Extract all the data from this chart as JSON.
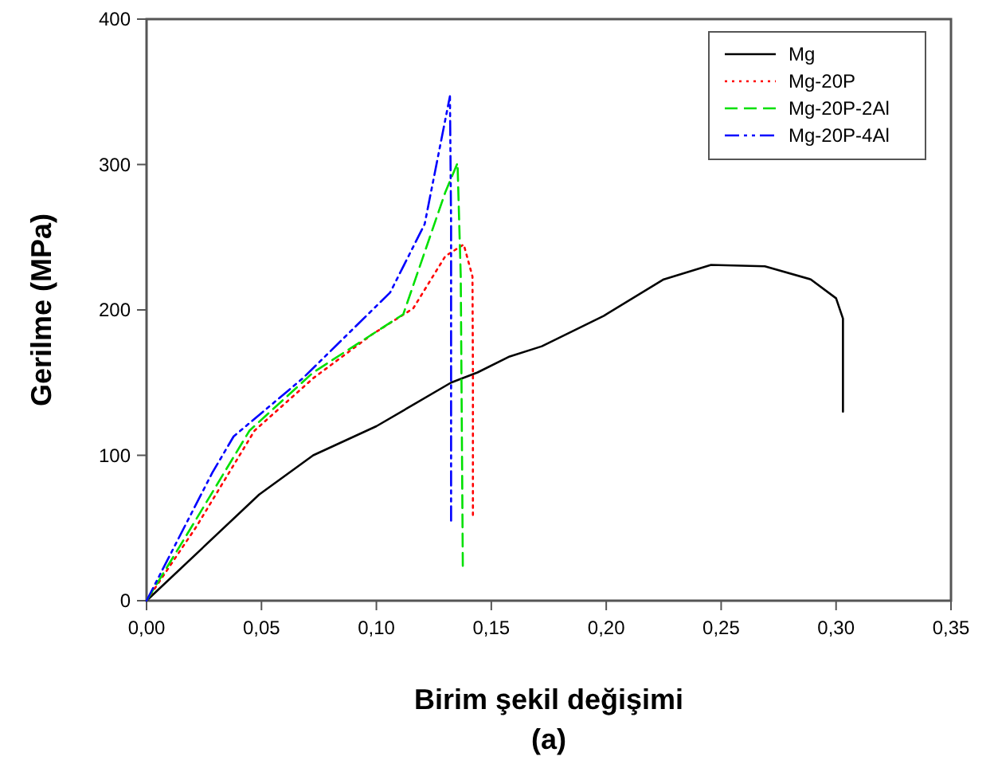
{
  "chart_data": {
    "type": "line",
    "xlabel": "Birim şekil değişimi",
    "ylabel": "Gerilme (MPa)",
    "annotations": [
      "(a)"
    ],
    "xlim": [
      0,
      0.35
    ],
    "ylim": [
      0,
      400
    ],
    "xticks": [
      {
        "value": 0,
        "label": "0,00"
      },
      {
        "value": 0.05,
        "label": "0,05"
      },
      {
        "value": 0.1,
        "label": "0,10"
      },
      {
        "value": 0.15,
        "label": "0,15"
      },
      {
        "value": 0.2,
        "label": "0,20"
      },
      {
        "value": 0.25,
        "label": "0,25"
      },
      {
        "value": 0.3,
        "label": "0,30"
      },
      {
        "value": 0.35,
        "label": "0,35"
      }
    ],
    "yticks": [
      0,
      100,
      200,
      300,
      400
    ],
    "grid": false,
    "legend": "top right",
    "marker": "none",
    "series": [
      {
        "name": "Mg",
        "color": "#000000",
        "line_style": "solid",
        "x": [
          0,
          0.049,
          0.0725,
          0.1,
          0.1325,
          0.144,
          0.158,
          0.172,
          0.199,
          0.225,
          0.2456,
          0.269,
          0.289,
          0.3,
          0.303,
          0.303
        ],
        "values": [
          0,
          73,
          100,
          120,
          150,
          157,
          168,
          175,
          196,
          221,
          231,
          230,
          221,
          208,
          194,
          130
        ]
      },
      {
        "name": "Mg-20P",
        "color": "#ff0000",
        "line_style": "dotted",
        "x": [
          0,
          0.0217,
          0.047,
          0.0725,
          0.098,
          0.116,
          0.13,
          0.138,
          0.1418,
          0.142,
          0.142
        ],
        "values": [
          0,
          51,
          117,
          153,
          183,
          201,
          237,
          245,
          223,
          157,
          59
        ]
      },
      {
        "name": "Mg-20P-2Al",
        "color": "#00e000",
        "line_style": "dashed",
        "x": [
          0,
          0.017,
          0.0448,
          0.0725,
          0.1117,
          0.13,
          0.1353,
          0.1367,
          0.1376
        ],
        "values": [
          0,
          44,
          117,
          157,
          197,
          281,
          301,
          223,
          24
        ]
      },
      {
        "name": "Mg-20P-4Al",
        "color": "#0000ff",
        "line_style": "dashdot",
        "x": [
          0,
          0.0286,
          0.0379,
          0.068,
          0.106,
          0.121,
          0.132,
          0.1325,
          0.1325
        ],
        "values": [
          0,
          88,
          113,
          153,
          212,
          259,
          347,
          259,
          55
        ]
      }
    ]
  }
}
